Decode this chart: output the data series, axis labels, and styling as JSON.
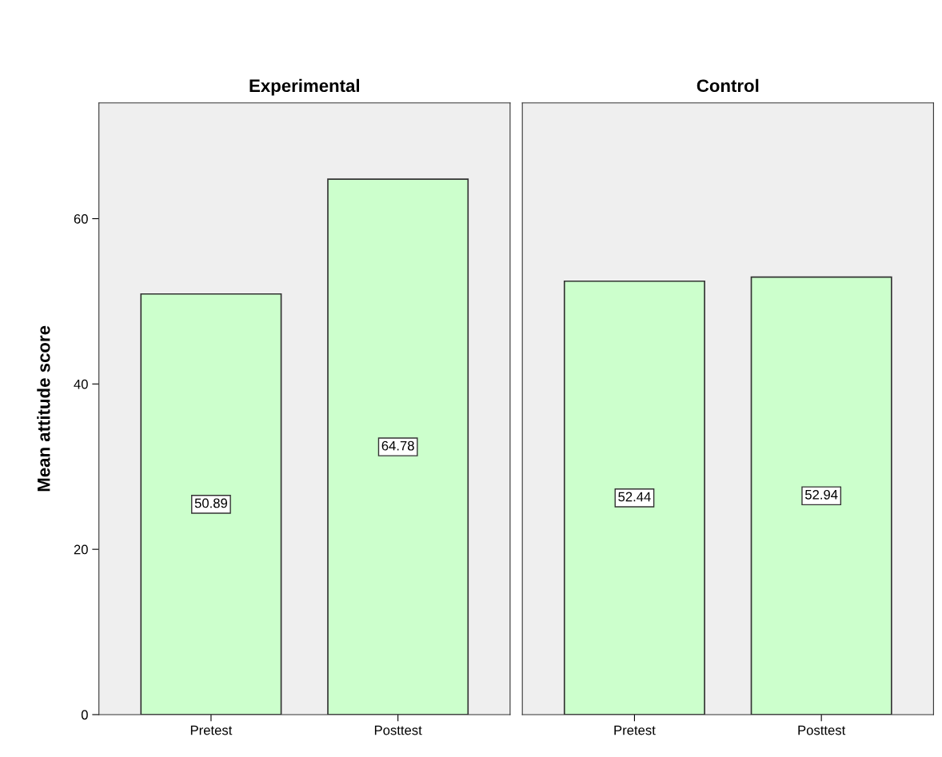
{
  "chart_data": [
    {
      "type": "bar",
      "title": "Experimental",
      "ylabel": "Mean attitude score",
      "categories": [
        "Pretest",
        "Posttest"
      ],
      "values": [
        50.89,
        64.78
      ],
      "color": "#ccffcc",
      "ylim": [
        0,
        74
      ],
      "yticks": [
        0,
        20,
        40,
        60
      ],
      "data_labels": true,
      "grid": false,
      "legend": false
    },
    {
      "type": "bar",
      "title": "Control",
      "categories": [
        "Pretest",
        "Posttest"
      ],
      "values": [
        52.44,
        52.94
      ],
      "color": "#ccffcc",
      "ylim": [
        0,
        74
      ],
      "yticks": [
        0,
        20,
        40,
        60
      ],
      "data_labels": true,
      "grid": false,
      "legend": false,
      "tick_labels": "x"
    }
  ]
}
